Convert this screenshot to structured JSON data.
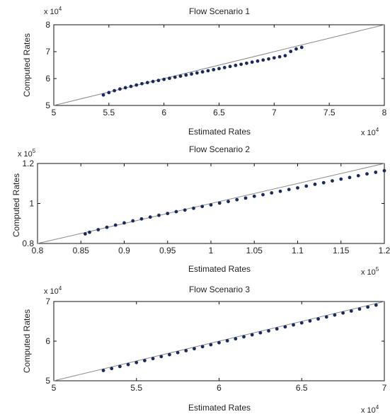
{
  "chart_data": [
    {
      "type": "scatter",
      "title": "Flow Scenario 1",
      "xlabel": "Estimated Rates",
      "ylabel": "Computed Rates",
      "x_exponent_label": "x 10",
      "x_exponent": "4",
      "y_exponent_label": "x 10",
      "y_exponent": "4",
      "xlim": [
        50000,
        80000
      ],
      "ylim": [
        50000,
        80000
      ],
      "xticks": [
        50000,
        55000,
        60000,
        65000,
        70000,
        75000,
        80000
      ],
      "xticklabels": [
        "5",
        "5.5",
        "6",
        "6.5",
        "7",
        "7.5",
        "8"
      ],
      "yticks": [
        50000,
        60000,
        70000,
        80000
      ],
      "yticklabels": [
        "5",
        "6",
        "7",
        "8"
      ],
      "reference_line": [
        [
          50000,
          50000
        ],
        [
          80000,
          80000
        ]
      ],
      "series": [
        {
          "marker_color": "#1a2a5c",
          "x": [
            54500,
            55000,
            55500,
            56000,
            56500,
            57000,
            57500,
            58000,
            58500,
            59000,
            59500,
            60000,
            60500,
            61000,
            61500,
            62000,
            62500,
            63000,
            63500,
            64000,
            64500,
            65000,
            65500,
            66000,
            66500,
            67000,
            67500,
            68000,
            68500,
            69000,
            69500,
            70000,
            70500,
            71000,
            71500,
            72000,
            72500
          ],
          "y": [
            53900,
            54800,
            55500,
            56100,
            56600,
            57100,
            57600,
            58100,
            58500,
            58900,
            59300,
            59700,
            60100,
            60500,
            60900,
            61300,
            61700,
            62100,
            62500,
            62900,
            63300,
            63700,
            64100,
            64500,
            64900,
            65300,
            65700,
            66100,
            66500,
            66900,
            67300,
            67700,
            68100,
            68500,
            70100,
            71000,
            71600
          ]
        }
      ]
    },
    {
      "type": "scatter",
      "title": "Flow Scenario 2",
      "xlabel": "Estimated Rates",
      "ylabel": "Computed Rates",
      "x_exponent_label": "x 10",
      "x_exponent": "5",
      "y_exponent_label": "x 10",
      "y_exponent": "5",
      "xlim": [
        80000,
        120000
      ],
      "ylim": [
        80000,
        120000
      ],
      "xticks": [
        80000,
        85000,
        90000,
        95000,
        100000,
        105000,
        110000,
        115000,
        120000
      ],
      "xticklabels": [
        "0.8",
        "0.85",
        "0.9",
        "0.95",
        "1",
        "1.05",
        "1.1",
        "1.15",
        "1.2"
      ],
      "yticks": [
        80000,
        100000,
        120000
      ],
      "yticklabels": [
        "0.8",
        "1",
        "1.2"
      ],
      "reference_line": [
        [
          80000,
          80000
        ],
        [
          120000,
          120000
        ]
      ],
      "series": [
        {
          "marker_color": "#1a2a5c",
          "x": [
            85500,
            86000,
            87000,
            88000,
            89000,
            90000,
            91000,
            92000,
            93000,
            94000,
            95000,
            96000,
            97000,
            98000,
            99000,
            100000,
            101000,
            102000,
            103000,
            104000,
            105000,
            106000,
            107000,
            108000,
            109000,
            110000,
            111000,
            112000,
            113000,
            114000,
            115000,
            116000,
            117000,
            118000,
            119000,
            120000
          ],
          "y": [
            84800,
            85600,
            86900,
            88100,
            89200,
            90300,
            91300,
            92300,
            93200,
            94100,
            95000,
            95900,
            96700,
            97600,
            98500,
            99300,
            100200,
            101000,
            101900,
            102700,
            103600,
            104400,
            105300,
            106100,
            107000,
            107800,
            108700,
            109600,
            110400,
            111300,
            112200,
            113000,
            113900,
            114800,
            115600,
            116400
          ]
        }
      ]
    },
    {
      "type": "scatter",
      "title": "Flow Scenario 3",
      "xlabel": "Estimated Rates",
      "ylabel": "Computed Rates",
      "x_exponent_label": "x 10",
      "x_exponent": "4",
      "y_exponent_label": "x 10",
      "y_exponent": "4",
      "xlim": [
        50000,
        70000
      ],
      "ylim": [
        50000,
        70000
      ],
      "xticks": [
        50000,
        55000,
        60000,
        65000,
        70000
      ],
      "xticklabels": [
        "5",
        "5.5",
        "6",
        "6.5",
        "7"
      ],
      "yticks": [
        50000,
        60000,
        70000
      ],
      "yticklabels": [
        "5",
        "6",
        "7"
      ],
      "reference_line": [
        [
          50000,
          50000
        ],
        [
          70000,
          70000
        ]
      ],
      "series": [
        {
          "marker_color": "#1a2a5c",
          "x": [
            53000,
            53500,
            54000,
            54500,
            55000,
            55500,
            56000,
            56500,
            57000,
            57500,
            58000,
            58500,
            59000,
            59500,
            60000,
            60500,
            61000,
            61500,
            62000,
            62500,
            63000,
            63500,
            64000,
            64500,
            65000,
            65500,
            66000,
            66500,
            67000,
            67500,
            68000,
            68500,
            69000,
            69500
          ],
          "y": [
            52600,
            53100,
            53600,
            54100,
            54600,
            55100,
            55600,
            56100,
            56600,
            57100,
            57600,
            58100,
            58600,
            59100,
            59600,
            60100,
            60600,
            61100,
            61600,
            62100,
            62600,
            63100,
            63600,
            64100,
            64600,
            65100,
            65600,
            66100,
            66600,
            67100,
            67600,
            68100,
            68600,
            69100
          ]
        }
      ]
    }
  ]
}
